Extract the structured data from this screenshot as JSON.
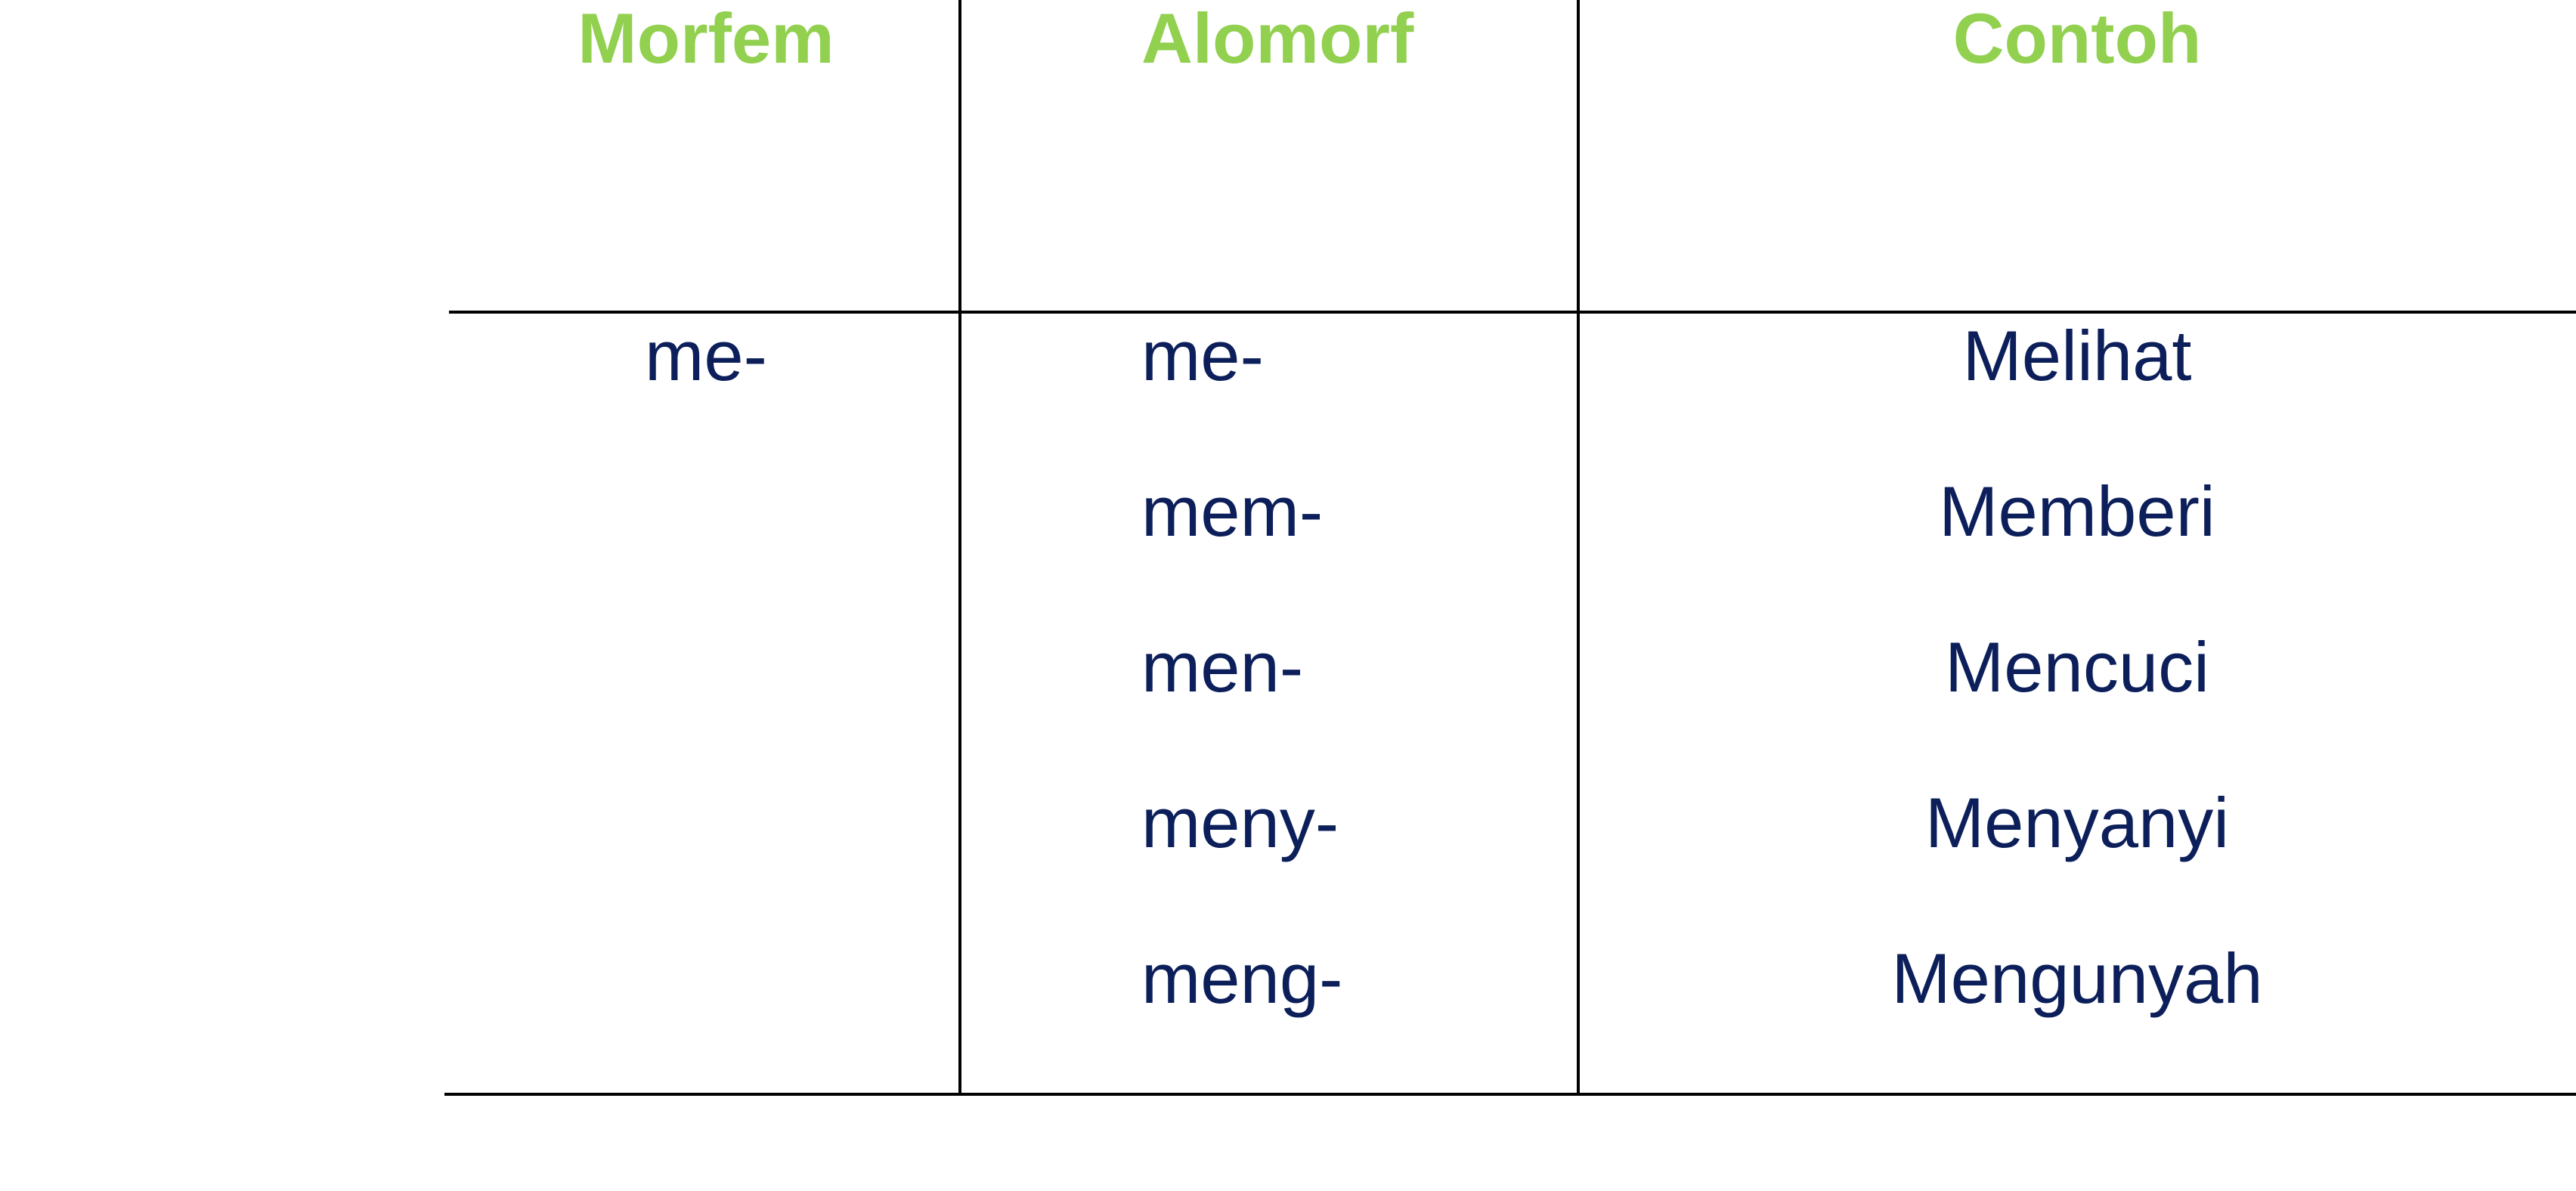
{
  "colors": {
    "header": "#92d050",
    "body_text": "#0c1f5a",
    "rules": "#000000"
  },
  "table": {
    "headers": {
      "morfem": "Morfem",
      "alomorf": "Alomorf",
      "contoh": "Contoh"
    },
    "morfem": "me-",
    "rows": [
      {
        "alomorf": "me-",
        "contoh": "Melihat"
      },
      {
        "alomorf": "mem-",
        "contoh": "Memberi"
      },
      {
        "alomorf": "men-",
        "contoh": "Mencuci"
      },
      {
        "alomorf": "meny-",
        "contoh": "Menyanyi"
      },
      {
        "alomorf": "meng-",
        "contoh": "Mengunyah"
      }
    ]
  }
}
